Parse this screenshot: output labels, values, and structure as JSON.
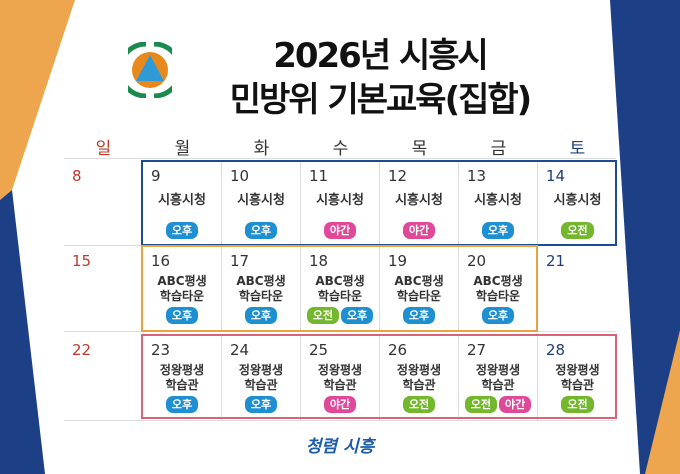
{
  "title": {
    "line1": "2026년 시흥시",
    "line2": "민방위 기본교육(집합)"
  },
  "colors": {
    "blue_badge": "#1e8fd0",
    "pink_badge": "#e0499a",
    "green_badge": "#72b72c",
    "week1_border": "#1d4c94",
    "week2_border": "#e8a440",
    "week3_border": "#d9647a",
    "sunday": "#c0392b",
    "saturday": "#1d3f7a"
  },
  "weekdays": [
    "일",
    "월",
    "화",
    "수",
    "목",
    "금",
    "토"
  ],
  "weeks": [
    {
      "days": [
        {
          "num": "8",
          "place": "",
          "badges": []
        },
        {
          "num": "9",
          "place": "시흥시청",
          "badges": [
            "오후"
          ]
        },
        {
          "num": "10",
          "place": "시흥시청",
          "badges": [
            "오후"
          ]
        },
        {
          "num": "11",
          "place": "시흥시청",
          "badges": [
            "야간"
          ]
        },
        {
          "num": "12",
          "place": "시흥시청",
          "badges": [
            "야간"
          ]
        },
        {
          "num": "13",
          "place": "시흥시청",
          "badges": [
            "오후"
          ]
        },
        {
          "num": "14",
          "place": "시흥시청",
          "badges": [
            "오전"
          ]
        }
      ]
    },
    {
      "days": [
        {
          "num": "15",
          "place": "",
          "badges": []
        },
        {
          "num": "16",
          "place": "ABC평생\n학습타운",
          "badges": [
            "오후"
          ]
        },
        {
          "num": "17",
          "place": "ABC평생\n학습타운",
          "badges": [
            "오후"
          ]
        },
        {
          "num": "18",
          "place": "ABC평생\n학습타운",
          "badges": [
            "오전",
            "오후"
          ]
        },
        {
          "num": "19",
          "place": "ABC평생\n학습타운",
          "badges": [
            "오후"
          ]
        },
        {
          "num": "20",
          "place": "ABC평생\n학습타운",
          "badges": [
            "오후"
          ]
        },
        {
          "num": "21",
          "place": "",
          "badges": []
        }
      ]
    },
    {
      "days": [
        {
          "num": "22",
          "place": "",
          "badges": []
        },
        {
          "num": "23",
          "place": "정왕평생\n학습관",
          "badges": [
            "오후"
          ]
        },
        {
          "num": "24",
          "place": "정왕평생\n학습관",
          "badges": [
            "오후"
          ]
        },
        {
          "num": "25",
          "place": "정왕평생\n학습관",
          "badges": [
            "야간"
          ]
        },
        {
          "num": "26",
          "place": "정왕평생\n학습관",
          "badges": [
            "오전"
          ]
        },
        {
          "num": "27",
          "place": "정왕평생\n학습관",
          "badges": [
            "오전",
            "야간"
          ]
        },
        {
          "num": "28",
          "place": "정왕평생\n학습관",
          "badges": [
            "오전"
          ]
        }
      ]
    }
  ],
  "slogan": "청렴 시흥",
  "icons": {
    "logo": "civil-defense-emblem-icon"
  }
}
